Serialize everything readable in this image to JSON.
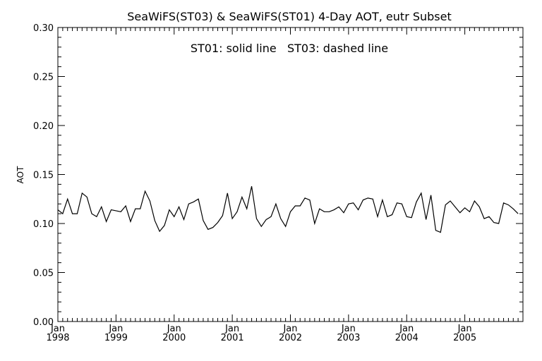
{
  "chart_data": {
    "type": "line",
    "title": "SeaWiFS(ST03) & SeaWiFS(ST01) 4-Day AOT, eutr Subset",
    "annotation": "ST01: solid line   ST03: dashed line",
    "xlabel": "",
    "ylabel": "AOT",
    "ylim": [
      0.0,
      0.3
    ],
    "xlim": [
      1998.0,
      2006.0
    ],
    "y_ticks": [
      "0.00",
      "0.05",
      "0.10",
      "0.15",
      "0.20",
      "0.25",
      "0.30"
    ],
    "x_ticks": [
      {
        "month": "Jan",
        "year": "1998"
      },
      {
        "month": "Jan",
        "year": "1999"
      },
      {
        "month": "Jan",
        "year": "2000"
      },
      {
        "month": "Jan",
        "year": "2001"
      },
      {
        "month": "Jan",
        "year": "2002"
      },
      {
        "month": "Jan",
        "year": "2003"
      },
      {
        "month": "Jan",
        "year": "2004"
      },
      {
        "month": "Jan",
        "year": "2005"
      }
    ],
    "grid": false,
    "line_color": "#000000",
    "series": [
      {
        "name": "ST01",
        "x": [
          1998.0,
          1998.083,
          1998.167,
          1998.25,
          1998.333,
          1998.417,
          1998.5,
          1998.583,
          1998.667,
          1998.75,
          1998.833,
          1998.917,
          1999.0,
          1999.083,
          1999.167,
          1999.25,
          1999.333,
          1999.417,
          1999.5,
          1999.583,
          1999.667,
          1999.75,
          1999.833,
          1999.917,
          2000.0,
          2000.083,
          2000.167,
          2000.25,
          2000.333,
          2000.417,
          2000.5,
          2000.583,
          2000.667,
          2000.75,
          2000.833,
          2000.917,
          2001.0,
          2001.083,
          2001.167,
          2001.25,
          2001.333,
          2001.417,
          2001.5,
          2001.583,
          2001.667,
          2001.75,
          2001.833,
          2001.917,
          2002.0,
          2002.083,
          2002.167,
          2002.25,
          2002.333,
          2002.417,
          2002.5,
          2002.583,
          2002.667,
          2002.75,
          2002.833,
          2002.917,
          2003.0,
          2003.083,
          2003.167,
          2003.25,
          2003.333,
          2003.417,
          2003.5,
          2003.583,
          2003.667,
          2003.75,
          2003.833,
          2003.917,
          2004.0,
          2004.083,
          2004.167,
          2004.25,
          2004.333,
          2004.417,
          2004.5,
          2004.583,
          2004.667,
          2004.75,
          2004.833,
          2004.917,
          2005.0,
          2005.083,
          2005.167,
          2005.25,
          2005.333,
          2005.417,
          2005.5,
          2005.583,
          2005.667,
          2005.75,
          2005.833,
          2005.917
        ],
        "y": [
          0.114,
          0.11,
          0.125,
          0.11,
          0.11,
          0.131,
          0.127,
          0.11,
          0.107,
          0.117,
          0.102,
          0.114,
          0.113,
          0.112,
          0.118,
          0.102,
          0.115,
          0.115,
          0.133,
          0.123,
          0.103,
          0.092,
          0.098,
          0.114,
          0.107,
          0.117,
          0.104,
          0.12,
          0.122,
          0.125,
          0.103,
          0.094,
          0.096,
          0.101,
          0.108,
          0.131,
          0.105,
          0.112,
          0.127,
          0.115,
          0.138,
          0.105,
          0.097,
          0.104,
          0.107,
          0.12,
          0.105,
          0.097,
          0.112,
          0.118,
          0.118,
          0.126,
          0.124,
          0.1,
          0.115,
          0.112,
          0.112,
          0.114,
          0.117,
          0.111,
          0.12,
          0.121,
          0.114,
          0.124,
          0.126,
          0.125,
          0.107,
          0.124,
          0.107,
          0.109,
          0.121,
          0.12,
          0.107,
          0.106,
          0.122,
          0.131,
          0.104,
          0.129,
          0.093,
          0.091,
          0.119,
          0.123,
          0.117,
          0.111,
          0.116,
          0.112,
          0.123,
          0.117,
          0.105,
          0.107,
          0.101,
          0.1,
          0.121,
          0.119,
          0.115,
          0.11
        ]
      }
    ]
  }
}
